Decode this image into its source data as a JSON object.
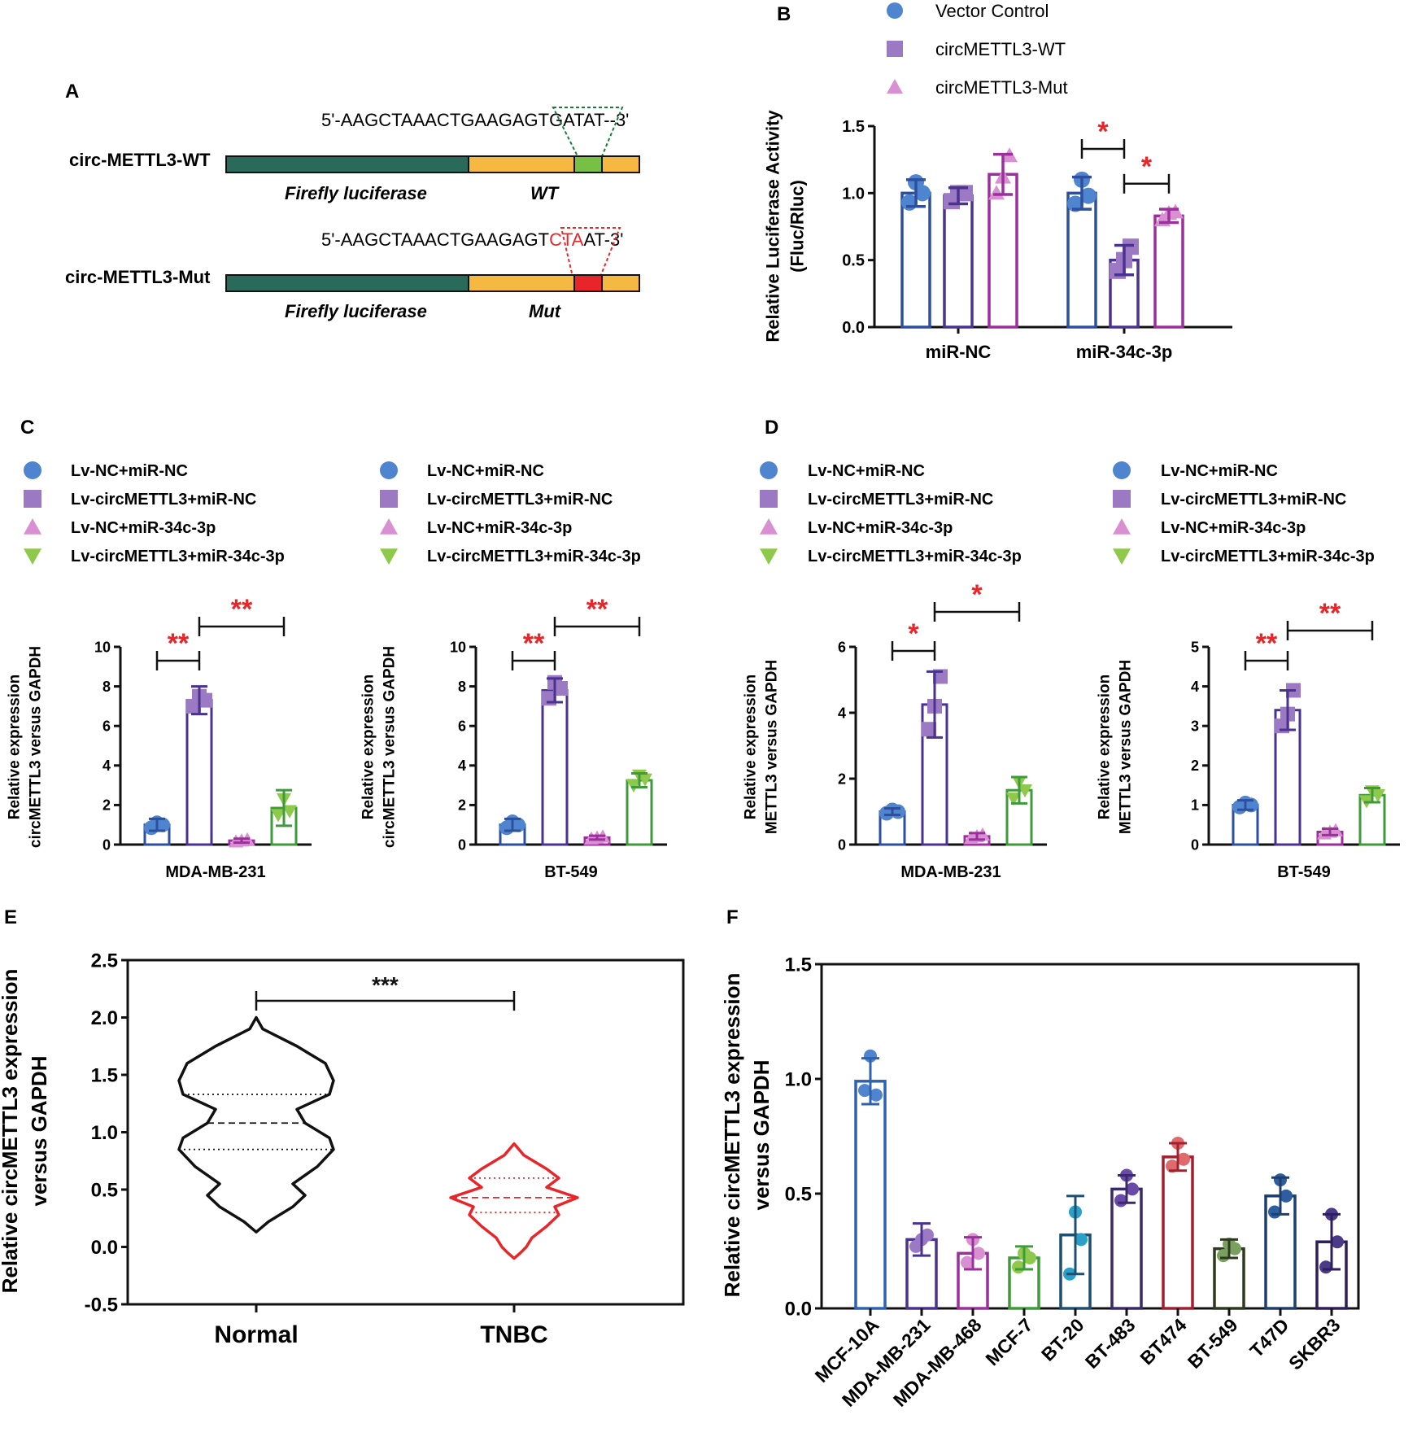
{
  "panels": {
    "A": {
      "letter": "A",
      "constructs": [
        {
          "name": "circ-METTL3-WT",
          "sequence_prefix": "5'-AAGCTAAACTGAAGAGT",
          "sequence_highlight": "GATA",
          "sequence_suffix": "T--3'",
          "highlight_color": "#1a7a3a",
          "site_color": "#77c043",
          "left_label": "Firefly luciferase",
          "right_label": "WT"
        },
        {
          "name": "circ-METTL3-Mut",
          "sequence_prefix": "5'-AAGCTAAACTGAAGAGT",
          "sequence_highlight": "CTA",
          "sequence_suffix": "AT-3'",
          "highlight_color": "#e8262a",
          "site_color": "#e8262a",
          "left_label": "Firefly luciferase",
          "right_label": "Mut"
        }
      ]
    },
    "B": {
      "letter": "B"
    },
    "C": {
      "letter": "C"
    },
    "D": {
      "letter": "D"
    },
    "E": {
      "letter": "E"
    },
    "F": {
      "letter": "F"
    }
  },
  "colors": {
    "blue": "#2e4f9e",
    "purple": "#4a3291",
    "magenta": "#9b2f9c",
    "green": "#3f9a3a",
    "blue_pt": "#4f84cf",
    "purple_pt": "#9c79c3",
    "pink_pt": "#d990d2",
    "green_pt": "#8ec94b",
    "sig": "#e8262a",
    "violin_normal": "#111111",
    "violin_tnbc": "#e8262a"
  },
  "chart_data": [
    {
      "id": "B",
      "type": "bar",
      "title": "",
      "xlabel": "",
      "ylabel": "Relative Luciferase Activity\n(Fluc/Rluc)",
      "ylim": [
        0,
        1.5
      ],
      "yticks": [
        "0.0",
        "0.5",
        "1.0",
        "1.5"
      ],
      "categories": [
        "miR-NC",
        "miR-34c-3p"
      ],
      "series": [
        {
          "name": "Vector Control",
          "marker": "circle",
          "values": [
            1.0,
            1.0
          ],
          "err": [
            0.1,
            0.12
          ],
          "points": [
            [
              0.93,
              1.08,
              1.0
            ],
            [
              0.92,
              1.1,
              0.98
            ]
          ]
        },
        {
          "name": "circMETTL3-WT",
          "marker": "square",
          "values": [
            0.98,
            0.5
          ],
          "err": [
            0.06,
            0.11
          ],
          "points": [
            [
              0.94,
              1.0,
              1.0
            ],
            [
              0.42,
              0.5,
              0.6
            ]
          ]
        },
        {
          "name": "circMETTL3-Mut",
          "marker": "triangle",
          "values": [
            1.14,
            0.83
          ],
          "err": [
            0.15,
            0.05
          ],
          "points": [
            [
              1.0,
              1.12,
              1.28
            ],
            [
              0.8,
              0.85,
              0.86
            ]
          ]
        }
      ],
      "significance": [
        {
          "group": 1,
          "from": 0,
          "to": 1,
          "label": "*"
        },
        {
          "group": 1,
          "from": 1,
          "to": 2,
          "label": "*"
        }
      ]
    },
    {
      "id": "C1",
      "type": "bar",
      "ylabel": "Relative expression\ncircMETTL3 versus GAPDH",
      "xlabel": "MDA-MB-231",
      "ylim": [
        0,
        10
      ],
      "yticks": [
        "0",
        "2",
        "4",
        "6",
        "8",
        "10"
      ],
      "categories": [
        "Lv-NC+miR-NC",
        "Lv-circMETTL3+miR-NC",
        "Lv-NC+miR-34c-3p",
        "Lv-circMETTL3+miR-34c-3p"
      ],
      "values": [
        1.0,
        7.3,
        0.2,
        1.85
      ],
      "err": [
        0.3,
        0.7,
        0.1,
        0.9
      ],
      "points": [
        [
          0.85,
          1.1,
          1.0
        ],
        [
          7.0,
          7.5,
          7.3
        ],
        [
          0.15,
          0.2,
          0.25
        ],
        [
          1.5,
          2.3,
          1.7
        ]
      ],
      "significance": [
        {
          "from": 0,
          "to": 1,
          "label": "**"
        },
        {
          "from": 1,
          "to": 3,
          "label": "**"
        }
      ]
    },
    {
      "id": "C2",
      "type": "bar",
      "ylabel": "Relative expression\ncircMETTL3 versus GAPDH",
      "xlabel": "BT-549",
      "ylim": [
        0,
        10
      ],
      "yticks": [
        "0",
        "2",
        "4",
        "6",
        "8",
        "10"
      ],
      "categories": [
        "Lv-NC+miR-NC",
        "Lv-circMETTL3+miR-NC",
        "Lv-NC+miR-34c-3p",
        "Lv-circMETTL3+miR-34c-3p"
      ],
      "values": [
        1.0,
        7.8,
        0.35,
        3.25
      ],
      "err": [
        0.3,
        0.6,
        0.1,
        0.35
      ],
      "points": [
        [
          0.85,
          1.15,
          1.0
        ],
        [
          7.4,
          8.2,
          7.9
        ],
        [
          0.3,
          0.35,
          0.4
        ],
        [
          3.0,
          3.5,
          3.3
        ]
      ],
      "significance": [
        {
          "from": 0,
          "to": 1,
          "label": "**"
        },
        {
          "from": 1,
          "to": 3,
          "label": "**"
        }
      ]
    },
    {
      "id": "D1",
      "type": "bar",
      "ylabel": "Relative expression\nMETTL3 versus GAPDH",
      "xlabel": "MDA-MB-231",
      "ylim": [
        0,
        6
      ],
      "yticks": [
        "0",
        "2",
        "4",
        "6"
      ],
      "categories": [
        "Lv-NC+miR-NC",
        "Lv-circMETTL3+miR-NC",
        "Lv-NC+miR-34c-3p",
        "Lv-circMETTL3+miR-34c-3p"
      ],
      "values": [
        1.0,
        4.25,
        0.25,
        1.65
      ],
      "err": [
        0.1,
        1.0,
        0.1,
        0.4
      ],
      "points": [
        [
          0.95,
          1.05,
          1.0
        ],
        [
          3.5,
          4.2,
          5.1
        ],
        [
          0.2,
          0.25,
          0.3
        ],
        [
          1.4,
          1.9,
          1.65
        ]
      ],
      "significance": [
        {
          "from": 0,
          "to": 1,
          "label": "*"
        },
        {
          "from": 1,
          "to": 3,
          "label": "*"
        }
      ]
    },
    {
      "id": "D2",
      "type": "bar",
      "ylabel": "Relative expression\nMETTL3 versus GAPDH",
      "xlabel": "BT-549",
      "ylim": [
        0,
        5
      ],
      "yticks": [
        "0",
        "1",
        "2",
        "3",
        "4",
        "5"
      ],
      "categories": [
        "Lv-NC+miR-NC",
        "Lv-circMETTL3+miR-NC",
        "Lv-NC+miR-34c-3p",
        "Lv-circMETTL3+miR-34c-3p"
      ],
      "values": [
        1.0,
        3.4,
        0.32,
        1.25
      ],
      "err": [
        0.12,
        0.5,
        0.08,
        0.18
      ],
      "points": [
        [
          0.95,
          1.05,
          1.0
        ],
        [
          3.0,
          3.3,
          3.9
        ],
        [
          0.28,
          0.32,
          0.36
        ],
        [
          1.1,
          1.35,
          1.25
        ]
      ],
      "significance": [
        {
          "from": 0,
          "to": 1,
          "label": "**"
        },
        {
          "from": 1,
          "to": 3,
          "label": "**"
        }
      ]
    },
    {
      "id": "E",
      "type": "violin",
      "ylabel": "Relative circMETTL3 expression\nversus GAPDH",
      "ylim": [
        -0.5,
        2.5
      ],
      "yticks": [
        "-0.5",
        "0.0",
        "0.5",
        "1.0",
        "1.5",
        "2.0",
        "2.5"
      ],
      "categories": [
        "Normal",
        "TNBC"
      ],
      "groups": [
        {
          "name": "Normal",
          "min": 0.13,
          "max": 2.0,
          "q1": 0.85,
          "median": 1.08,
          "q3": 1.33,
          "profile": [
            [
              2.0,
              0.0
            ],
            [
              1.9,
              0.08
            ],
            [
              1.75,
              0.5
            ],
            [
              1.6,
              0.85
            ],
            [
              1.45,
              0.95
            ],
            [
              1.33,
              0.9
            ],
            [
              1.2,
              0.5
            ],
            [
              1.08,
              0.6
            ],
            [
              0.95,
              0.9
            ],
            [
              0.85,
              0.95
            ],
            [
              0.7,
              0.75
            ],
            [
              0.55,
              0.45
            ],
            [
              0.45,
              0.6
            ],
            [
              0.35,
              0.45
            ],
            [
              0.22,
              0.15
            ],
            [
              0.13,
              0.0
            ]
          ]
        },
        {
          "name": "TNBC",
          "min": -0.1,
          "max": 0.9,
          "q1": 0.3,
          "median": 0.43,
          "q3": 0.6,
          "profile": [
            [
              0.9,
              0.0
            ],
            [
              0.8,
              0.12
            ],
            [
              0.68,
              0.4
            ],
            [
              0.6,
              0.55
            ],
            [
              0.52,
              0.4
            ],
            [
              0.43,
              0.78
            ],
            [
              0.35,
              0.5
            ],
            [
              0.28,
              0.55
            ],
            [
              0.18,
              0.4
            ],
            [
              0.08,
              0.22
            ],
            [
              0.0,
              0.15
            ],
            [
              -0.05,
              0.08
            ],
            [
              -0.1,
              0.0
            ]
          ]
        }
      ],
      "significance": [
        {
          "from": 0,
          "to": 1,
          "label": "***"
        }
      ]
    },
    {
      "id": "F",
      "type": "bar",
      "ylabel": "Relative circMETTL3 expression\nversus GAPDH",
      "ylim": [
        0,
        1.5
      ],
      "yticks": [
        "0.0",
        "0.5",
        "1.0",
        "1.5"
      ],
      "categories": [
        "MCF-10A",
        "MDA-MB-231",
        "MDA-MB-468",
        "MCF-7",
        "BT-20",
        "BT-483",
        "BT474",
        "BT-549",
        "T47D",
        "SKBR3"
      ],
      "values": [
        0.99,
        0.3,
        0.24,
        0.22,
        0.32,
        0.52,
        0.66,
        0.26,
        0.49,
        0.29
      ],
      "err": [
        0.1,
        0.07,
        0.07,
        0.05,
        0.17,
        0.06,
        0.06,
        0.04,
        0.08,
        0.12
      ],
      "points": [
        [
          0.95,
          1.1,
          0.93
        ],
        [
          0.27,
          0.3,
          0.32
        ],
        [
          0.2,
          0.3,
          0.24
        ],
        [
          0.18,
          0.24,
          0.22
        ],
        [
          0.15,
          0.42,
          0.3
        ],
        [
          0.47,
          0.58,
          0.52
        ],
        [
          0.62,
          0.72,
          0.65
        ],
        [
          0.23,
          0.28,
          0.26
        ],
        [
          0.42,
          0.56,
          0.49
        ],
        [
          0.18,
          0.41,
          0.29
        ]
      ],
      "bar_colors": [
        "#2e62b0",
        "#4a3291",
        "#9b2f9c",
        "#3f9a3a",
        "#1f4f6e",
        "#3a2a6a",
        "#a02030",
        "#2e3a1e",
        "#1e3e6e",
        "#2e1e5e"
      ],
      "point_colors": [
        "#4f84cf",
        "#9c79c3",
        "#d990d2",
        "#8ec94b",
        "#2aa0c8",
        "#6a4aa8",
        "#e06a6a",
        "#7aa060",
        "#2e5e9e",
        "#4a3a8a"
      ]
    }
  ]
}
